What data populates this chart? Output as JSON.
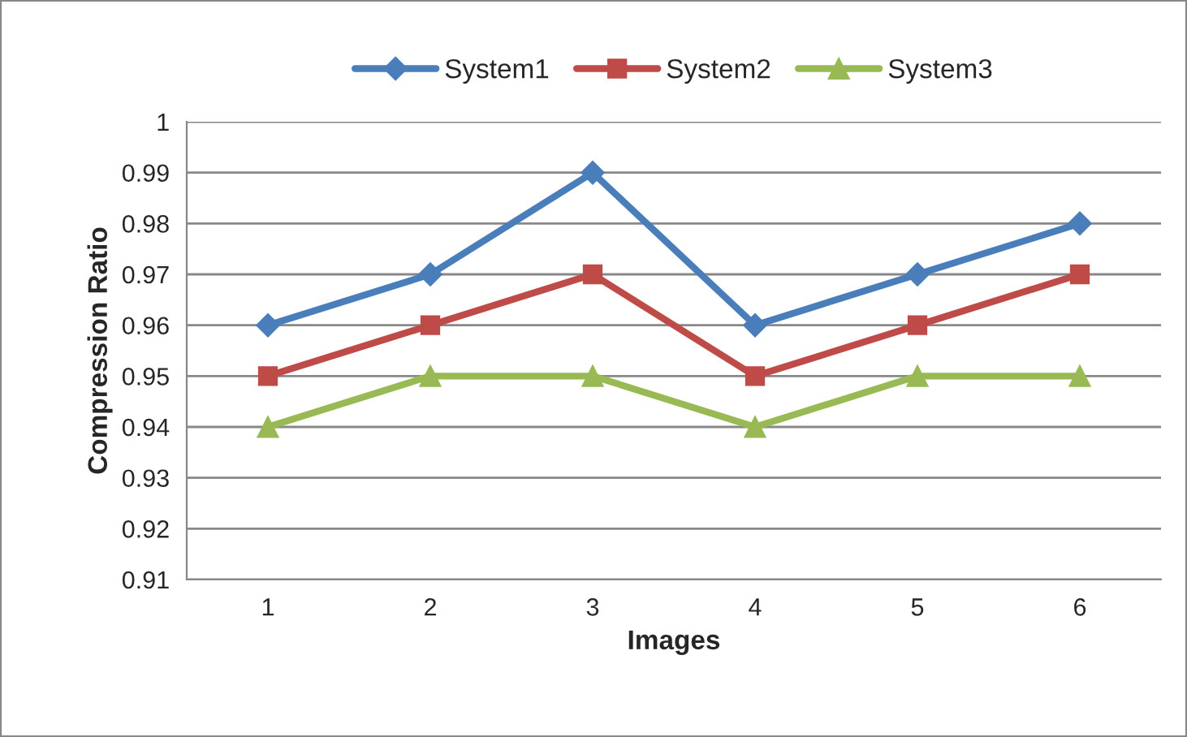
{
  "chart_data": {
    "type": "line",
    "xlabel": "Images",
    "ylabel": "Compression Ratio",
    "categories": [
      "1",
      "2",
      "3",
      "4",
      "5",
      "6"
    ],
    "series": [
      {
        "name": "System1",
        "color": "#4a7ebb",
        "marker": "diamond",
        "values": [
          0.96,
          0.97,
          0.99,
          0.96,
          0.97,
          0.98
        ]
      },
      {
        "name": "System2",
        "color": "#be4b48",
        "marker": "square",
        "values": [
          0.95,
          0.96,
          0.97,
          0.95,
          0.96,
          0.97
        ]
      },
      {
        "name": "System3",
        "color": "#98b954",
        "marker": "triangle",
        "values": [
          0.94,
          0.95,
          0.95,
          0.94,
          0.95,
          0.95
        ]
      }
    ],
    "ylim": [
      0.91,
      1
    ],
    "yticks": [
      0.91,
      0.92,
      0.93,
      0.94,
      0.95,
      0.96,
      0.97,
      0.98,
      0.99,
      1
    ],
    "grid": "y",
    "legend": "top",
    "line_style": "solid"
  }
}
